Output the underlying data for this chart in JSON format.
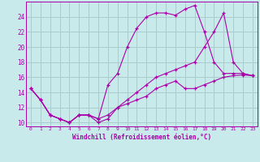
{
  "xlabel": "Windchill (Refroidissement éolien,°C)",
  "bg_color": "#c8eaea",
  "grid_color": "#aacccc",
  "line_color": "#aa00aa",
  "xlim": [
    -0.5,
    23.5
  ],
  "ylim": [
    9.5,
    26.0
  ],
  "xticks": [
    0,
    1,
    2,
    3,
    4,
    5,
    6,
    7,
    8,
    9,
    10,
    11,
    12,
    13,
    14,
    15,
    16,
    17,
    18,
    19,
    20,
    21,
    22,
    23
  ],
  "yticks": [
    10,
    12,
    14,
    16,
    18,
    20,
    22,
    24
  ],
  "series": [
    [
      14.5,
      13.0,
      11.0,
      10.5,
      10.0,
      11.0,
      11.0,
      10.0,
      10.5,
      12.0,
      12.5,
      13.0,
      13.5,
      14.5,
      15.0,
      15.5,
      14.5,
      14.5,
      15.0,
      15.5,
      16.0,
      16.2,
      16.3,
      16.2
    ],
    [
      14.5,
      13.0,
      11.0,
      10.5,
      10.0,
      11.0,
      11.0,
      10.5,
      15.0,
      16.5,
      20.0,
      22.5,
      24.0,
      24.5,
      24.5,
      24.2,
      25.0,
      25.5,
      22.0,
      18.0,
      16.5,
      16.5,
      16.5,
      16.2
    ],
    [
      14.5,
      13.0,
      11.0,
      10.5,
      10.0,
      11.0,
      11.0,
      10.5,
      11.0,
      12.0,
      13.0,
      14.0,
      15.0,
      16.0,
      16.5,
      17.0,
      17.5,
      18.0,
      20.0,
      22.0,
      24.5,
      18.0,
      16.5,
      16.2
    ]
  ]
}
